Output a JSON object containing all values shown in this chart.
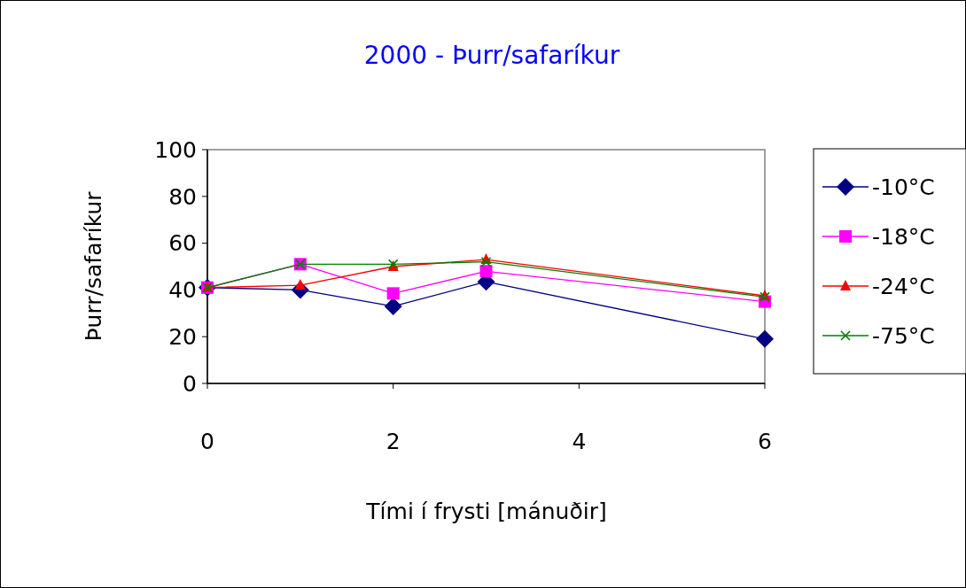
{
  "chart_data": {
    "type": "line",
    "title": "2000 - Þurr/safaríkur",
    "xlabel": "Tími í frysti [mánuðir]",
    "ylabel": "Þurr/safaríkur",
    "x": [
      0,
      1,
      2,
      3,
      6
    ],
    "xlim": [
      0,
      6
    ],
    "xticks": [
      0,
      2,
      4,
      6
    ],
    "ylim": [
      0,
      100
    ],
    "yticks": [
      0,
      20,
      40,
      60,
      80,
      100
    ],
    "grid": false,
    "legend": "right",
    "series": [
      {
        "name": "-10°C",
        "color": "#000080",
        "marker": "diamond",
        "values": [
          41,
          40,
          33,
          43.5,
          19
        ]
      },
      {
        "name": "-18°C",
        "color": "#ff00ff",
        "marker": "square",
        "values": [
          41,
          51,
          38.5,
          48,
          35
        ]
      },
      {
        "name": "-24°C",
        "color": "#ff0000",
        "marker": "triangle",
        "values": [
          41,
          42,
          50,
          53,
          37.5
        ]
      },
      {
        "name": "-75°C",
        "color": "#008000",
        "marker": "cross",
        "values": [
          41,
          51,
          51,
          52,
          37
        ]
      }
    ]
  }
}
